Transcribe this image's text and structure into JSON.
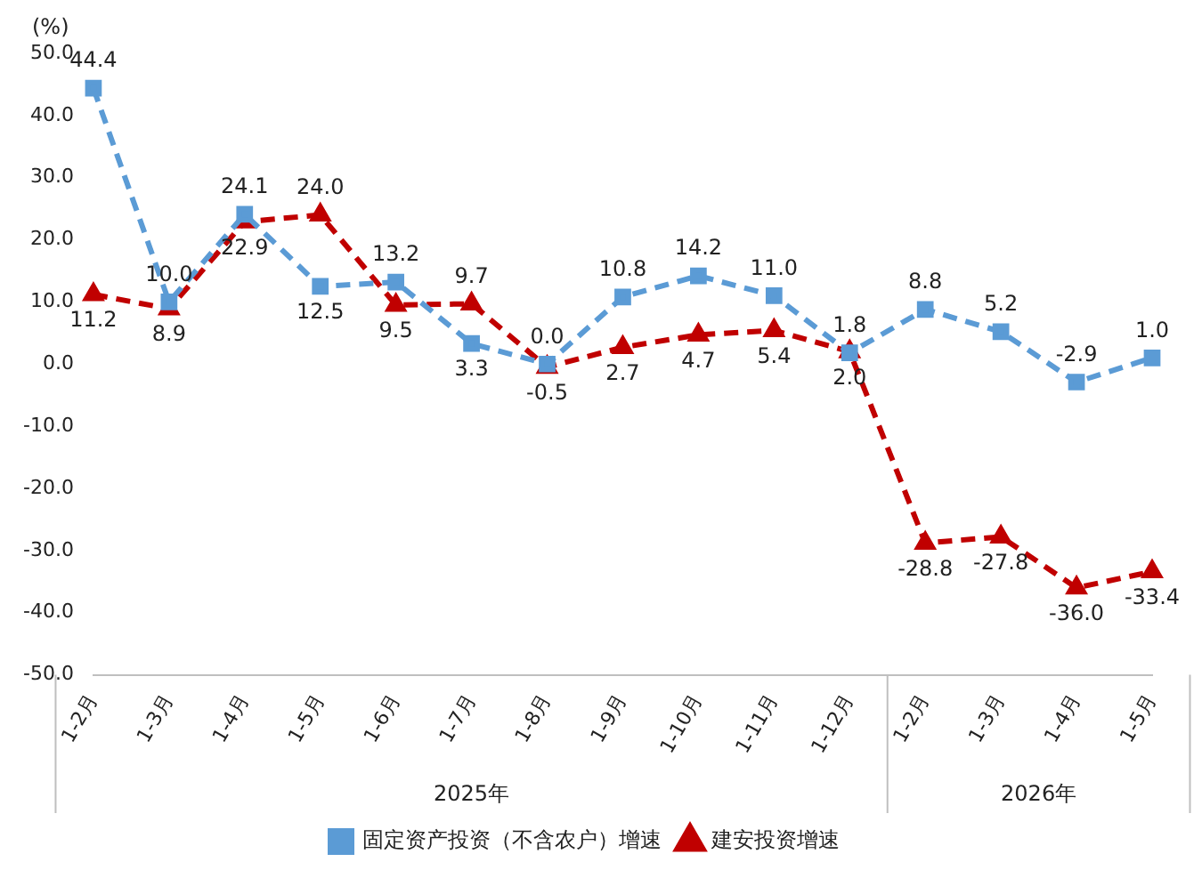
{
  "chart_data": {
    "type": "line",
    "ylabel": "(%)",
    "categories": [
      "1-2月",
      "1-3月",
      "1-4月",
      "1-5月",
      "1-6月",
      "1-7月",
      "1-8月",
      "1-9月",
      "1-10月",
      "1-11月",
      "1-12月",
      "1-2月",
      "1-3月",
      "1-4月",
      "1-5月"
    ],
    "series": [
      {
        "name": "固定资产投资（不含农户）增速",
        "color": "#5b9bd5",
        "marker": "square",
        "line_style": "dashed",
        "values": [
          44.4,
          10.0,
          24.1,
          12.5,
          13.2,
          3.3,
          0.0,
          10.8,
          14.2,
          11.0,
          1.8,
          8.8,
          5.2,
          -2.9,
          1.0
        ],
        "value_labels": [
          "44.4",
          "10.0",
          "24.1",
          "12.5",
          "13.2",
          "3.3",
          "0.0",
          "10.8",
          "14.2",
          "11.0",
          "1.8",
          "8.8",
          "5.2",
          "-2.9",
          "1.0"
        ]
      },
      {
        "name": "建安投资增速",
        "color": "#c00000",
        "marker": "triangle",
        "line_style": "dashed",
        "values": [
          11.2,
          8.9,
          22.9,
          24.0,
          9.5,
          9.7,
          -0.5,
          2.7,
          4.7,
          5.4,
          2.0,
          -28.8,
          -27.8,
          -36.0,
          -33.4
        ],
        "value_labels": [
          "11.2",
          "8.9",
          "22.9",
          "24.0",
          "9.5",
          "9.7",
          "-0.5",
          "2.7",
          "4.7",
          "5.4",
          "2.0",
          "-28.8",
          "-27.8",
          "-36.0",
          "-33.4"
        ]
      }
    ],
    "ylim": [
      -50,
      50
    ],
    "yticks": [
      {
        "value": -50,
        "label": "-50.0"
      },
      {
        "value": -40,
        "label": "-40.0"
      },
      {
        "value": -30,
        "label": "-30.0"
      },
      {
        "value": -20,
        "label": "-20.0"
      },
      {
        "value": -10,
        "label": "-10.0"
      },
      {
        "value": 0,
        "label": "0.0"
      },
      {
        "value": 10,
        "label": "10.0"
      },
      {
        "value": 20,
        "label": "20.0"
      },
      {
        "value": 30,
        "label": "30.0"
      },
      {
        "value": 40,
        "label": "40.0"
      },
      {
        "value": 50,
        "label": "50.0"
      }
    ],
    "grid": false,
    "legend": "bottom",
    "annotations": [
      "2025年",
      "2026年"
    ]
  }
}
